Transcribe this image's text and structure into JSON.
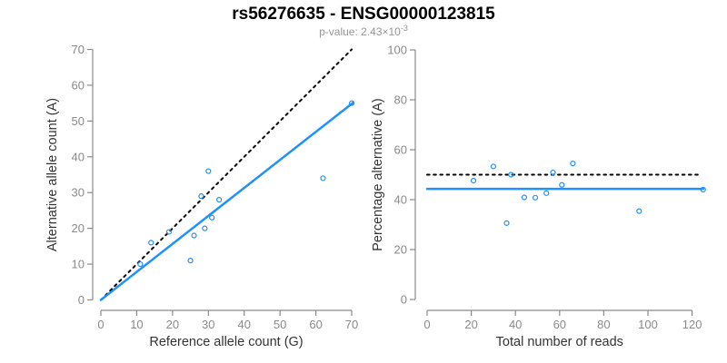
{
  "header": {
    "title": "rs56276635 - ENSG00000123815",
    "subtitle_prefix": "p-value: 2.43×10",
    "subtitle_exponent": "-3"
  },
  "colors": {
    "accent_blue": "#1E90FF",
    "line_black": "#000000",
    "axis_gray": "#8A8A8A",
    "tick_label_gray": "#8A8A8A",
    "axis_title_color": "#333333"
  },
  "chart_data": [
    {
      "type": "scatter",
      "title": "",
      "xlabel": "Reference allele count (G)",
      "ylabel": "Alternative allele count (A)",
      "xlim": [
        0,
        70
      ],
      "ylim": [
        0,
        70
      ],
      "xticks": [
        0,
        10,
        20,
        30,
        40,
        50,
        60,
        70
      ],
      "yticks": [
        0,
        10,
        20,
        30,
        40,
        50,
        60,
        70
      ],
      "grid": false,
      "legend": "none",
      "points": [
        [
          11,
          10
        ],
        [
          14,
          16
        ],
        [
          19,
          19
        ],
        [
          25,
          11
        ],
        [
          26,
          18
        ],
        [
          29,
          20
        ],
        [
          28,
          29
        ],
        [
          31,
          23
        ],
        [
          33,
          28
        ],
        [
          30,
          36
        ],
        [
          62,
          34
        ],
        [
          70,
          55
        ]
      ],
      "lines": [
        {
          "name": "identity-line-dotted",
          "style": "dotted",
          "color": "#000000",
          "from": [
            0,
            0
          ],
          "to": [
            70,
            70
          ]
        },
        {
          "name": "fit-line-solid",
          "style": "solid",
          "color": "#1E90FF",
          "from": [
            0,
            0
          ],
          "to": [
            70.5,
            55.2
          ]
        }
      ]
    },
    {
      "type": "scatter",
      "title": "",
      "xlabel": "Total number of reads",
      "ylabel": "Percentage alternative (A)",
      "xlim": [
        0,
        125
      ],
      "ylim": [
        0,
        100
      ],
      "xticks": [
        0,
        20,
        40,
        60,
        80,
        100,
        120
      ],
      "yticks": [
        0,
        20,
        40,
        60,
        80,
        100
      ],
      "grid": false,
      "legend": "none",
      "points": [
        [
          21,
          47.6
        ],
        [
          30,
          53.3
        ],
        [
          36,
          30.6
        ],
        [
          38,
          50
        ],
        [
          44,
          40.9
        ],
        [
          49,
          40.8
        ],
        [
          54,
          42.6
        ],
        [
          57,
          50.9
        ],
        [
          61,
          45.9
        ],
        [
          66,
          54.5
        ],
        [
          96,
          35.4
        ],
        [
          125,
          44
        ]
      ],
      "lines": [
        {
          "name": "expected-50pct-line-dotted",
          "style": "dotted",
          "color": "#000000",
          "from": [
            0,
            50
          ],
          "to": [
            123,
            50
          ]
        },
        {
          "name": "mean-pct-line-solid",
          "style": "solid",
          "color": "#1E90FF",
          "from": [
            0,
            44.3
          ],
          "to": [
            125,
            44.3
          ]
        }
      ]
    }
  ]
}
